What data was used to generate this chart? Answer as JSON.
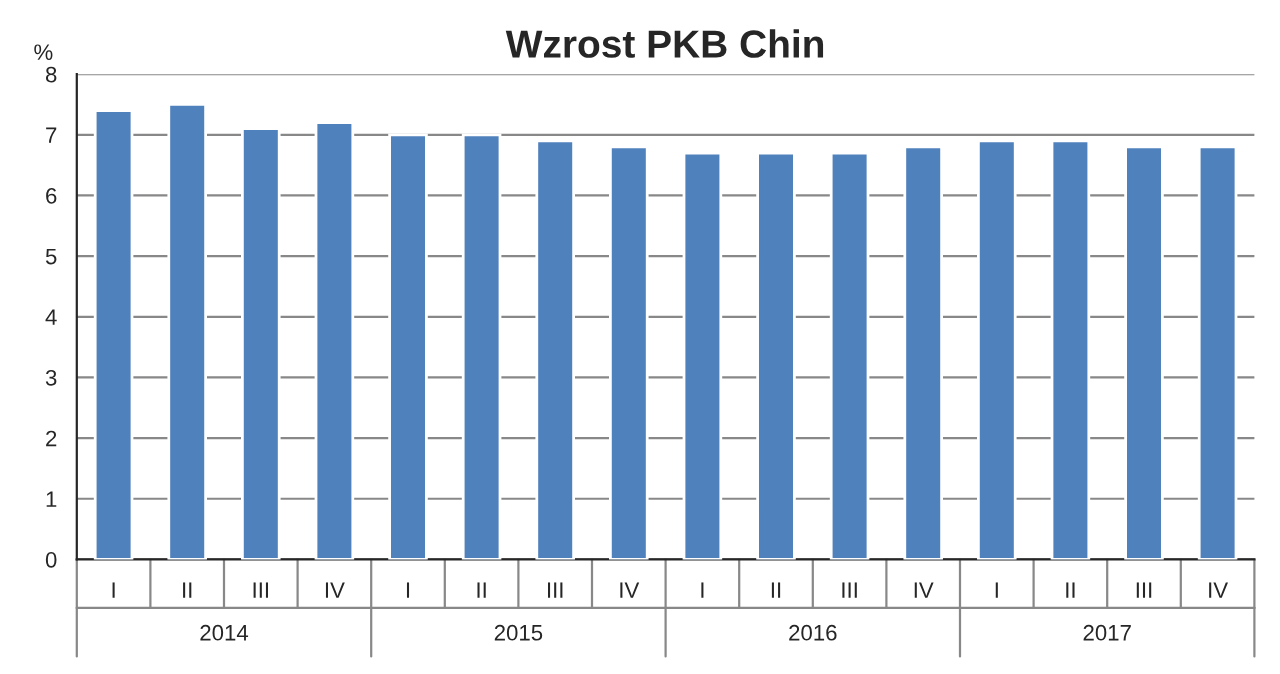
{
  "chart_data": {
    "type": "bar",
    "title": "Wzrost PKB Chin",
    "ylabel": "%",
    "categories": [
      "I",
      "II",
      "III",
      "IV",
      "I",
      "II",
      "III",
      "IV",
      "I",
      "II",
      "III",
      "IV",
      "I",
      "II",
      "III",
      "IV"
    ],
    "values": [
      7.4,
      7.5,
      7.1,
      7.2,
      7.0,
      7.0,
      6.9,
      6.8,
      6.7,
      6.7,
      6.7,
      6.8,
      6.9,
      6.9,
      6.8,
      6.8
    ],
    "color": "#4f81bd",
    "ylim": [
      0,
      8
    ],
    "yticks": [
      0,
      1,
      2,
      3,
      4,
      5,
      6,
      7,
      8
    ],
    "grid": "y",
    "annotations": [
      "2014",
      "2015",
      "2016",
      "2017"
    ]
  }
}
